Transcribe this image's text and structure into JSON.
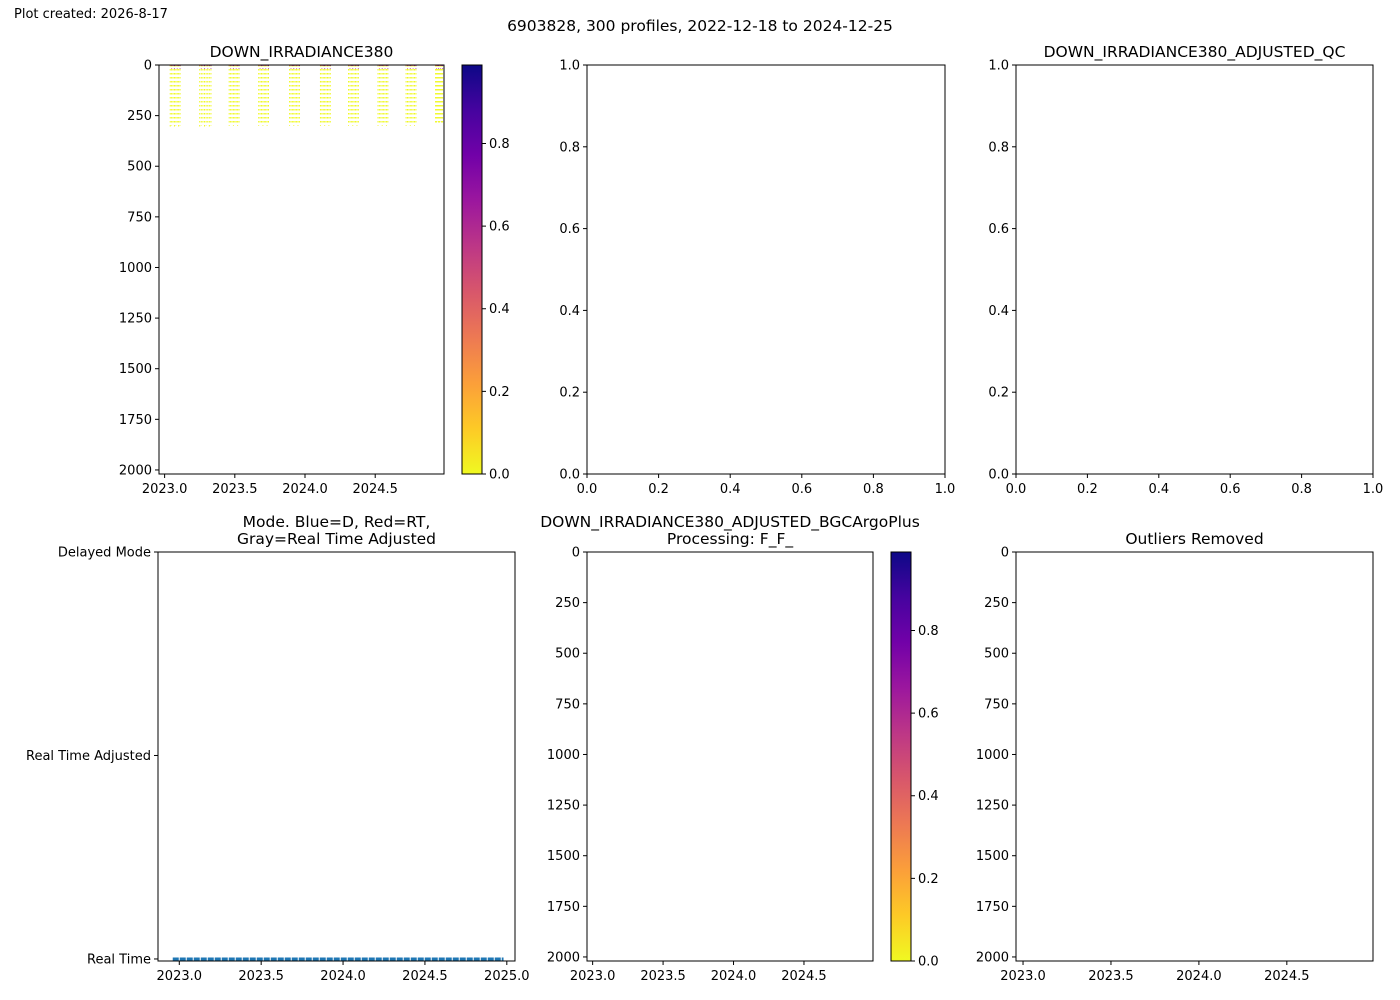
{
  "header": {
    "plot_created": "Plot created: 2026-8-17",
    "suptitle": "6903828, 300 profiles, 2022-12-18 to 2024-12-25"
  },
  "colors": {
    "plasma_r": [
      "#f0f921",
      "#fdca26",
      "#fb9f3a",
      "#ed7953",
      "#d8576b",
      "#bd3786",
      "#9c179e",
      "#7201a8",
      "#46039f",
      "#0d0887"
    ],
    "mode_line": "#1f77b4"
  },
  "chart_data": [
    {
      "id": "irr",
      "type": "heatmap",
      "title": "DOWN_IRRADIANCE380",
      "x_ticks": [
        2023.0,
        2023.5,
        2024.0,
        2024.5
      ],
      "x_tick_labels": [
        "2023.0",
        "2023.5",
        "2024.0",
        "2024.5"
      ],
      "xlim": [
        2022.96,
        2024.99
      ],
      "y_ticks": [
        0,
        250,
        500,
        750,
        1000,
        1250,
        1500,
        1750,
        2000
      ],
      "y_tick_labels": [
        "0",
        "250",
        "500",
        "750",
        "1000",
        "1250",
        "1500",
        "1750",
        "2000"
      ],
      "ylim": [
        2020,
        0
      ],
      "y_inverted": true,
      "profile_groups": [
        {
          "start": 2023.04,
          "end": 2023.11,
          "depth_max": 305
        },
        {
          "start": 2023.25,
          "end": 2023.33,
          "depth_max": 305
        },
        {
          "start": 2023.46,
          "end": 2023.53,
          "depth_max": 300
        },
        {
          "start": 2023.67,
          "end": 2023.74,
          "depth_max": 300
        },
        {
          "start": 2023.89,
          "end": 2023.96,
          "depth_max": 300
        },
        {
          "start": 2024.11,
          "end": 2024.18,
          "depth_max": 300
        },
        {
          "start": 2024.31,
          "end": 2024.38,
          "depth_max": 300
        },
        {
          "start": 2024.52,
          "end": 2024.59,
          "depth_max": 300
        },
        {
          "start": 2024.72,
          "end": 2024.79,
          "depth_max": 300
        },
        {
          "start": 2024.93,
          "end": 2024.98,
          "depth_max": 290
        }
      ],
      "colorbar": {
        "ticks": [
          0.0,
          0.2,
          0.4,
          0.6,
          0.8
        ],
        "tick_labels": [
          "0.0",
          "0.2",
          "0.4",
          "0.6",
          "0.8"
        ],
        "range": [
          0.0,
          0.99
        ]
      }
    },
    {
      "id": "empty1",
      "type": "scatter",
      "title": "",
      "x_ticks": [
        0.0,
        0.2,
        0.4,
        0.6,
        0.8,
        1.0
      ],
      "x_tick_labels": [
        "0.0",
        "0.2",
        "0.4",
        "0.6",
        "0.8",
        "1.0"
      ],
      "xlim": [
        0,
        1
      ],
      "y_ticks": [
        0.0,
        0.2,
        0.4,
        0.6,
        0.8,
        1.0
      ],
      "y_tick_labels": [
        "0.0",
        "0.2",
        "0.4",
        "0.6",
        "0.8",
        "1.0"
      ],
      "ylim": [
        0,
        1
      ]
    },
    {
      "id": "qc",
      "type": "scatter",
      "title": "DOWN_IRRADIANCE380_ADJUSTED_QC",
      "x_ticks": [
        0.0,
        0.2,
        0.4,
        0.6,
        0.8,
        1.0
      ],
      "x_tick_labels": [
        "0.0",
        "0.2",
        "0.4",
        "0.6",
        "0.8",
        "1.0"
      ],
      "xlim": [
        0,
        1
      ],
      "y_ticks": [
        0.0,
        0.2,
        0.4,
        0.6,
        0.8,
        1.0
      ],
      "y_tick_labels": [
        "0.0",
        "0.2",
        "0.4",
        "0.6",
        "0.8",
        "1.0"
      ],
      "ylim": [
        0,
        1
      ]
    },
    {
      "id": "mode",
      "type": "line",
      "title": "Mode. Blue=D, Red=RT,\nGray=Real Time Adjusted",
      "x_ticks": [
        2023.0,
        2023.5,
        2024.0,
        2024.5,
        2025.0
      ],
      "x_tick_labels": [
        "2023.0",
        "2023.5",
        "2024.0",
        "2024.5",
        "2025.0"
      ],
      "xlim": [
        2022.87,
        2025.05
      ],
      "y_ticks": [
        0,
        1,
        2
      ],
      "y_tick_labels": [
        "Real Time",
        "Real Time Adjusted",
        "Delayed Mode"
      ],
      "ylim": [
        -0.01,
        2.0
      ],
      "series": [
        {
          "x": [
            2022.96,
            2024.98
          ],
          "y": [
            0,
            0
          ]
        }
      ]
    },
    {
      "id": "bgc",
      "type": "heatmap",
      "title": "DOWN_IRRADIANCE380_ADJUSTED_BGCArgoPlus\nProcessing: F_F_",
      "x_ticks": [
        2023.0,
        2023.5,
        2024.0,
        2024.5
      ],
      "x_tick_labels": [
        "2023.0",
        "2023.5",
        "2024.0",
        "2024.5"
      ],
      "xlim": [
        2022.96,
        2024.99
      ],
      "y_ticks": [
        0,
        250,
        500,
        750,
        1000,
        1250,
        1500,
        1750,
        2000
      ],
      "y_tick_labels": [
        "0",
        "250",
        "500",
        "750",
        "1000",
        "1250",
        "1500",
        "1750",
        "2000"
      ],
      "ylim": [
        2020,
        0
      ],
      "y_inverted": true,
      "colorbar": {
        "ticks": [
          0.0,
          0.2,
          0.4,
          0.6,
          0.8
        ],
        "tick_labels": [
          "0.0",
          "0.2",
          "0.4",
          "0.6",
          "0.8"
        ],
        "range": [
          0.0,
          0.99
        ]
      }
    },
    {
      "id": "outliers",
      "type": "heatmap",
      "title": "Outliers Removed",
      "x_ticks": [
        2023.0,
        2023.5,
        2024.0,
        2024.5
      ],
      "x_tick_labels": [
        "2023.0",
        "2023.5",
        "2024.0",
        "2024.5"
      ],
      "xlim": [
        2022.96,
        2024.99
      ],
      "y_ticks": [
        0,
        250,
        500,
        750,
        1000,
        1250,
        1500,
        1750,
        2000
      ],
      "y_tick_labels": [
        "0",
        "250",
        "500",
        "750",
        "1000",
        "1250",
        "1500",
        "1750",
        "2000"
      ],
      "ylim": [
        2020,
        0
      ],
      "y_inverted": true
    }
  ]
}
